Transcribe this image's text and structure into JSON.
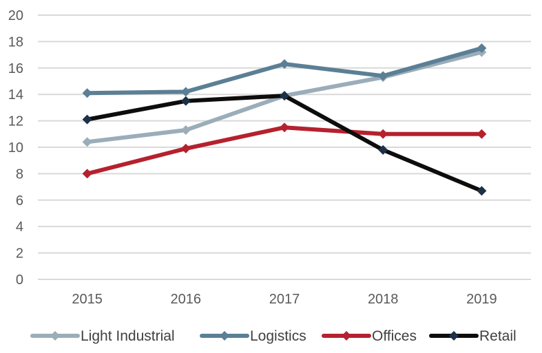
{
  "chart_data": {
    "type": "line",
    "categories": [
      "2015",
      "2016",
      "2017",
      "2018",
      "2019"
    ],
    "ylim": [
      0,
      20
    ],
    "yticks": [
      "0",
      "2",
      "4",
      "6",
      "8",
      "10",
      "12",
      "14",
      "16",
      "18",
      "20"
    ],
    "grid": true,
    "legend_position": "bottom",
    "series": [
      {
        "name": "Light Industrial",
        "color": "#9badb9",
        "values": [
          10.4,
          11.3,
          13.9,
          15.3,
          17.2
        ]
      },
      {
        "name": "Logistics",
        "color": "#5b7f95",
        "values": [
          14.1,
          14.2,
          16.3,
          15.4,
          17.5
        ]
      },
      {
        "name": "Offices",
        "color": "#b5212e",
        "values": [
          8.0,
          9.9,
          11.5,
          11.0,
          11.0
        ]
      },
      {
        "name": "Retail",
        "color": "#0d0d0d",
        "marker_color": "#1c3048",
        "values": [
          12.1,
          13.5,
          13.9,
          9.8,
          6.7
        ]
      }
    ]
  }
}
